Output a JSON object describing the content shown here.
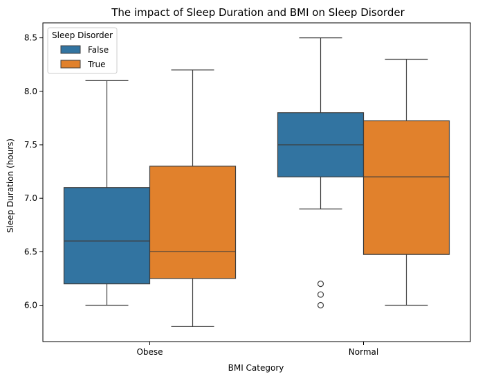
{
  "chart_data": {
    "type": "box",
    "title": "The impact of Sleep Duration and BMI on Sleep Disorder",
    "xlabel": "BMI Category",
    "ylabel": "Sleep Duration (hours)",
    "categories": [
      "Obese",
      "Normal"
    ],
    "ylim": [
      5.66,
      8.64
    ],
    "yticks": [
      6.0,
      6.5,
      7.0,
      7.5,
      8.0,
      8.5
    ],
    "ytick_labels": [
      "6.0",
      "6.5",
      "7.0",
      "7.5",
      "8.0",
      "8.5"
    ],
    "grid": false,
    "legend": {
      "title": "Sleep Disorder",
      "placement": "top-left",
      "entries": [
        "False",
        "True"
      ]
    },
    "series": [
      {
        "name": "False",
        "color": "#3274a1",
        "boxes": [
          {
            "category": "Obese",
            "whisker_low": 6.0,
            "q1": 6.2,
            "median": 6.6,
            "q3": 7.1,
            "whisker_high": 8.1,
            "outliers": []
          },
          {
            "category": "Normal",
            "whisker_low": 6.9,
            "q1": 7.2,
            "median": 7.5,
            "q3": 7.8,
            "whisker_high": 8.5,
            "outliers": [
              6.0,
              6.1,
              6.2
            ]
          }
        ]
      },
      {
        "name": "True",
        "color": "#e1812c",
        "boxes": [
          {
            "category": "Obese",
            "whisker_low": 5.8,
            "q1": 6.25,
            "median": 6.5,
            "q3": 7.3,
            "whisker_high": 8.2,
            "outliers": []
          },
          {
            "category": "Normal",
            "whisker_low": 6.0,
            "q1": 6.475,
            "median": 7.2,
            "q3": 7.725,
            "whisker_high": 8.3,
            "outliers": []
          }
        ]
      }
    ]
  }
}
